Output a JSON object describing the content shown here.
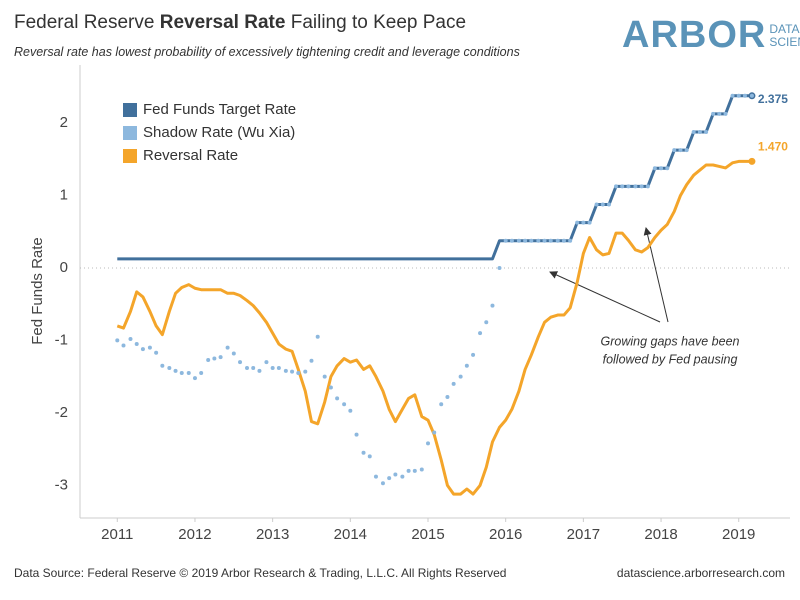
{
  "chart_data": {
    "type": "line",
    "title": [
      "Federal Reserve",
      "Reversal Rate",
      "Failing to Keep Pace"
    ],
    "subtitle": "Reversal rate has lowest probability of excessively tightening credit and leverage conditions",
    "logo": {
      "name": "ARBOR",
      "tag": [
        "DATA",
        "SCIENCE"
      ]
    },
    "y_label": "Fed Funds Rate",
    "annotation": [
      "Growing gaps have been",
      "followed by Fed pausing"
    ],
    "source": "Data Source: Federal Reserve © 2019 Arbor Research & Trading, L.L.C. All Rights Reserved",
    "url": "datascience.arborresearch.com",
    "legend": "top-left",
    "xlim": [
      2010.52,
      2019.66
    ],
    "xticks": [
      2011,
      2012,
      2013,
      2014,
      2015,
      2016,
      2017,
      2018,
      2019
    ],
    "ylim": [
      -3.45,
      2.8
    ],
    "yticks": [
      -3,
      -2,
      -1,
      0,
      1,
      2
    ],
    "x": [
      2011,
      2011.08,
      2011.17,
      2011.25,
      2011.33,
      2011.42,
      2011.5,
      2011.58,
      2011.67,
      2011.75,
      2011.83,
      2011.92,
      2012,
      2012.08,
      2012.17,
      2012.25,
      2012.33,
      2012.42,
      2012.5,
      2012.58,
      2012.67,
      2012.75,
      2012.83,
      2012.92,
      2013,
      2013.08,
      2013.17,
      2013.25,
      2013.33,
      2013.42,
      2013.5,
      2013.58,
      2013.67,
      2013.75,
      2013.83,
      2013.92,
      2014,
      2014.08,
      2014.17,
      2014.25,
      2014.33,
      2014.42,
      2014.5,
      2014.58,
      2014.67,
      2014.75,
      2014.83,
      2014.92,
      2015,
      2015.08,
      2015.17,
      2015.25,
      2015.33,
      2015.42,
      2015.5,
      2015.58,
      2015.67,
      2015.75,
      2015.83,
      2015.92,
      2016,
      2016.08,
      2016.17,
      2016.25,
      2016.33,
      2016.42,
      2016.5,
      2016.58,
      2016.67,
      2016.75,
      2016.83,
      2016.92,
      2017,
      2017.08,
      2017.17,
      2017.25,
      2017.33,
      2017.42,
      2017.5,
      2017.58,
      2017.67,
      2017.75,
      2017.83,
      2017.92,
      2018,
      2018.08,
      2018.17,
      2018.25,
      2018.33,
      2018.42,
      2018.5,
      2018.58,
      2018.67,
      2018.75,
      2018.83,
      2018.92,
      2019,
      2019.08,
      2019.17
    ],
    "series": [
      {
        "name": "Fed Funds Target Rate",
        "color": "#41709c",
        "style": "line",
        "end_dot": true,
        "values": [
          0.125,
          0.125,
          0.125,
          0.125,
          0.125,
          0.125,
          0.125,
          0.125,
          0.125,
          0.125,
          0.125,
          0.125,
          0.125,
          0.125,
          0.125,
          0.125,
          0.125,
          0.125,
          0.125,
          0.125,
          0.125,
          0.125,
          0.125,
          0.125,
          0.125,
          0.125,
          0.125,
          0.125,
          0.125,
          0.125,
          0.125,
          0.125,
          0.125,
          0.125,
          0.125,
          0.125,
          0.125,
          0.125,
          0.125,
          0.125,
          0.125,
          0.125,
          0.125,
          0.125,
          0.125,
          0.125,
          0.125,
          0.125,
          0.125,
          0.125,
          0.125,
          0.125,
          0.125,
          0.125,
          0.125,
          0.125,
          0.125,
          0.125,
          0.125,
          0.375,
          0.375,
          0.375,
          0.375,
          0.375,
          0.375,
          0.375,
          0.375,
          0.375,
          0.375,
          0.375,
          0.375,
          0.625,
          0.625,
          0.625,
          0.875,
          0.875,
          0.875,
          1.125,
          1.125,
          1.125,
          1.125,
          1.125,
          1.125,
          1.375,
          1.375,
          1.375,
          1.625,
          1.625,
          1.625,
          1.875,
          1.875,
          1.875,
          2.125,
          2.125,
          2.125,
          2.375,
          2.375,
          2.375,
          2.375
        ],
        "value_labels": [
          null,
          null,
          null,
          null,
          null,
          null,
          null,
          null,
          null,
          null,
          null,
          null,
          null,
          null,
          null,
          null,
          null,
          null,
          null,
          null,
          null,
          null,
          null,
          null,
          null,
          null,
          null,
          null,
          null,
          null,
          null,
          null,
          null,
          null,
          null,
          null,
          null,
          null,
          null,
          null,
          null,
          null,
          null,
          null,
          null,
          null,
          null,
          null,
          null,
          null,
          null,
          null,
          null,
          null,
          null,
          null,
          null,
          null,
          null,
          null,
          null,
          null,
          null,
          null,
          null,
          null,
          null,
          null,
          null,
          null,
          null,
          null,
          null,
          null,
          null,
          null,
          null,
          null,
          null,
          null,
          null,
          null,
          null,
          null,
          null,
          null,
          null,
          null,
          null,
          null,
          null,
          null,
          null,
          null,
          null,
          null,
          null,
          null,
          "2.375"
        ]
      },
      {
        "name": "Shadow Rate (Wu Xia)",
        "color": "#8db8de",
        "style": "dots",
        "values": [
          -1.0,
          -1.07,
          -0.98,
          -1.05,
          -1.12,
          -1.1,
          -1.17,
          -1.35,
          -1.38,
          -1.42,
          -1.45,
          -1.45,
          -1.52,
          -1.45,
          -1.27,
          -1.25,
          -1.23,
          -1.1,
          -1.18,
          -1.3,
          -1.38,
          -1.38,
          -1.42,
          -1.3,
          -1.38,
          -1.38,
          -1.42,
          -1.43,
          -1.45,
          -1.43,
          -1.28,
          -0.95,
          -1.5,
          -1.65,
          -1.8,
          -1.88,
          -1.97,
          -2.3,
          -2.55,
          -2.6,
          -2.88,
          -2.97,
          -2.9,
          -2.85,
          -2.88,
          -2.8,
          -2.8,
          -2.78,
          -2.42,
          -2.27,
          -1.88,
          -1.78,
          -1.6,
          -1.5,
          -1.35,
          -1.2,
          -0.9,
          -0.75,
          -0.52,
          0.0,
          0.375,
          0.375,
          0.375,
          0.375,
          0.375,
          0.375,
          0.375,
          0.375,
          0.375,
          0.375,
          0.375,
          0.625,
          0.625,
          0.625,
          0.875,
          0.875,
          0.875,
          1.125,
          1.125,
          1.125,
          1.125,
          1.125,
          1.125,
          1.375,
          1.375,
          1.375,
          1.625,
          1.625,
          1.625,
          1.875,
          1.875,
          1.875,
          2.125,
          2.125,
          2.125,
          2.375,
          2.375,
          2.375,
          2.375
        ]
      },
      {
        "name": "Reversal Rate",
        "color": "#f4a52a",
        "style": "line",
        "end_dot": true,
        "values": [
          -0.8,
          -0.83,
          -0.6,
          -0.33,
          -0.4,
          -0.6,
          -0.8,
          -0.92,
          -0.6,
          -0.35,
          -0.27,
          -0.23,
          -0.28,
          -0.3,
          -0.3,
          -0.3,
          -0.3,
          -0.35,
          -0.35,
          -0.38,
          -0.45,
          -0.52,
          -0.62,
          -0.75,
          -0.9,
          -1.05,
          -1.12,
          -1.15,
          -1.4,
          -1.7,
          -2.12,
          -2.15,
          -1.85,
          -1.5,
          -1.35,
          -1.25,
          -1.3,
          -1.27,
          -1.4,
          -1.35,
          -1.5,
          -1.7,
          -1.95,
          -2.12,
          -1.95,
          -1.8,
          -1.75,
          -2.05,
          -2.1,
          -2.3,
          -2.65,
          -3.0,
          -3.12,
          -3.12,
          -3.05,
          -3.12,
          -3.0,
          -2.75,
          -2.4,
          -2.2,
          -2.1,
          -1.95,
          -1.7,
          -1.4,
          -1.2,
          -0.95,
          -0.75,
          -0.68,
          -0.65,
          -0.65,
          -0.55,
          -0.2,
          0.2,
          0.42,
          0.25,
          0.18,
          0.2,
          0.48,
          0.48,
          0.38,
          0.25,
          0.22,
          0.28,
          0.42,
          0.52,
          0.6,
          0.78,
          1.0,
          1.15,
          1.28,
          1.35,
          1.42,
          1.42,
          1.4,
          1.38,
          1.45,
          1.47,
          1.47,
          1.47
        ],
        "value_labels": [
          null,
          null,
          null,
          null,
          null,
          null,
          null,
          null,
          null,
          null,
          null,
          null,
          null,
          null,
          null,
          null,
          null,
          null,
          null,
          null,
          null,
          null,
          null,
          null,
          null,
          null,
          null,
          null,
          null,
          null,
          null,
          null,
          null,
          null,
          null,
          null,
          null,
          null,
          null,
          null,
          null,
          null,
          null,
          null,
          null,
          null,
          null,
          null,
          null,
          null,
          null,
          null,
          null,
          null,
          null,
          null,
          null,
          null,
          null,
          null,
          null,
          null,
          null,
          null,
          null,
          null,
          null,
          null,
          null,
          null,
          null,
          null,
          null,
          null,
          null,
          null,
          null,
          null,
          null,
          null,
          null,
          null,
          null,
          null,
          null,
          null,
          null,
          null,
          null,
          null,
          null,
          null,
          null,
          null,
          null,
          null,
          null,
          null,
          "1.470"
        ]
      }
    ]
  }
}
